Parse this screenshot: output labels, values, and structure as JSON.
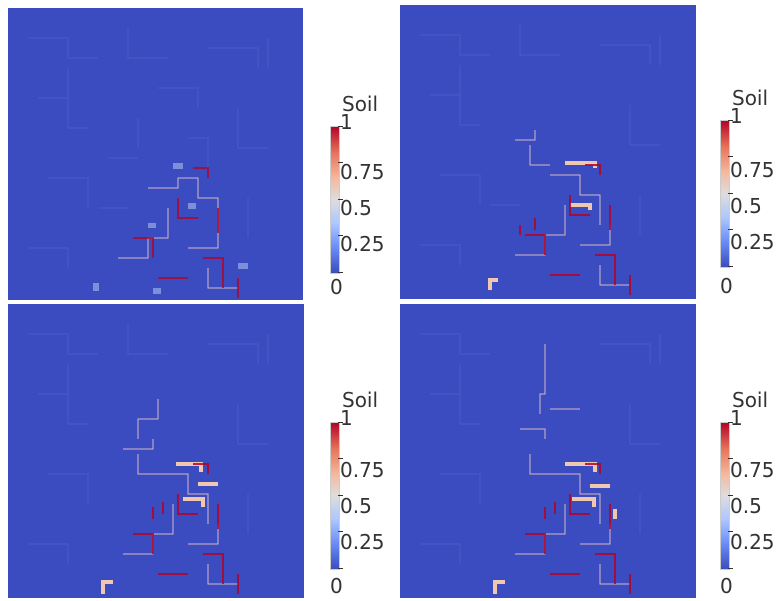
{
  "colormap": {
    "low_color": "#3b4cc0",
    "mid_color": "#dddddd",
    "high_color": "#b40426"
  },
  "panels": [
    {
      "legend": {
        "title": "Soil",
        "ticks": [
          {
            "label": "1",
            "value": 1.0
          },
          {
            "label": "0.75",
            "value": 0.75
          },
          {
            "label": "0.5",
            "value": 0.5
          },
          {
            "label": "0.25",
            "value": 0.25
          },
          {
            "label": "0",
            "value": 0.0
          }
        ]
      }
    },
    {
      "legend": {
        "title": "Soil",
        "ticks": [
          {
            "label": "1",
            "value": 1.0
          },
          {
            "label": "0.75",
            "value": 0.75
          },
          {
            "label": "0.5",
            "value": 0.5
          },
          {
            "label": "0.25",
            "value": 0.25
          },
          {
            "label": "0",
            "value": 0.0
          }
        ]
      }
    },
    {
      "legend": {
        "title": "Soil",
        "ticks": [
          {
            "label": "1",
            "value": 1.0
          },
          {
            "label": "0.75",
            "value": 0.75
          },
          {
            "label": "0.5",
            "value": 0.5
          },
          {
            "label": "0.25",
            "value": 0.25
          },
          {
            "label": "0",
            "value": 0.0
          }
        ]
      }
    },
    {
      "legend": {
        "title": "Soil",
        "ticks": [
          {
            "label": "1",
            "value": 1.0
          },
          {
            "label": "0.75",
            "value": 0.75
          },
          {
            "label": "0.5",
            "value": 0.5
          },
          {
            "label": "0.25",
            "value": 0.25
          },
          {
            "label": "0",
            "value": 0.0
          }
        ]
      }
    }
  ]
}
